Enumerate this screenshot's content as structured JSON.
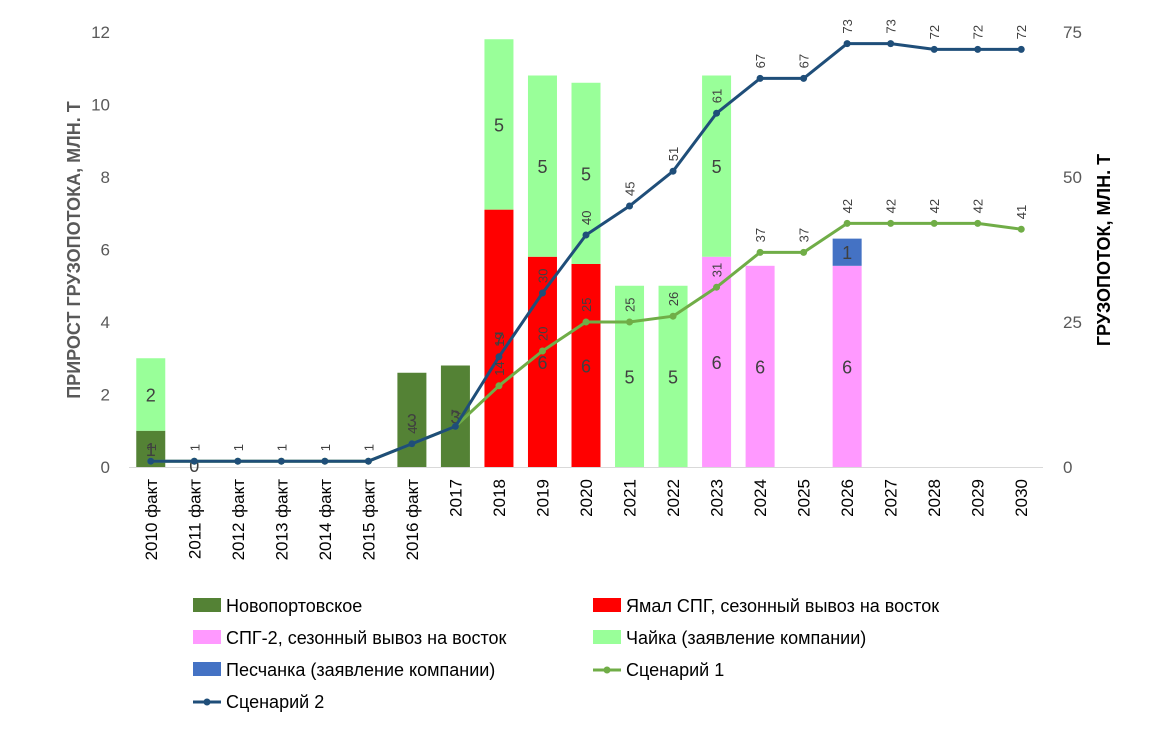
{
  "chart_data": {
    "type": "bar",
    "categories": [
      "2010 факт",
      "2011 факт",
      "2012 факт",
      "2013 факт",
      "2014 факт",
      "2015 факт",
      "2016 факт",
      "2017",
      "2018",
      "2019",
      "2020",
      "2021",
      "2022",
      "2023",
      "2024",
      "2025",
      "2026",
      "2027",
      "2028",
      "2029",
      "2030"
    ],
    "ylabel": "ПРИРОСТ ГРУЗОПОТОКА, МЛН. Т",
    "y2label": "ГРУЗОПОТОК, МЛН. Т",
    "ylim": [
      0,
      12
    ],
    "yticks": [
      0,
      2,
      4,
      6,
      8,
      10,
      12
    ],
    "y2lim": [
      0,
      75
    ],
    "y2ticks": [
      0,
      25,
      50,
      75
    ],
    "series": [
      {
        "name": "Новопортовское",
        "kind": "bar",
        "color": "#548235",
        "values": [
          1,
          0,
          0,
          0,
          0,
          0,
          2.6,
          2.8,
          0,
          0,
          0,
          0,
          0,
          0,
          0,
          0,
          0,
          0,
          0,
          0,
          0
        ],
        "labels": [
          "1",
          "0",
          "",
          "",
          "",
          "",
          "3",
          "3",
          "",
          "",
          "",
          "",
          "",
          "",
          "",
          "",
          "",
          "",
          "",
          "",
          ""
        ]
      },
      {
        "name": "Ямал СПГ, сезонный вывоз на восток",
        "kind": "bar",
        "color": "#ff0000",
        "values": [
          0,
          0,
          0,
          0,
          0,
          0,
          0,
          0,
          7.1,
          5.8,
          5.6,
          0,
          0,
          0,
          0,
          0,
          0,
          0,
          0,
          0,
          0
        ],
        "labels": [
          "",
          "",
          "",
          "",
          "",
          "",
          "",
          "",
          "7",
          "6",
          "6",
          "",
          "",
          "",
          "",
          "",
          "",
          "",
          "",
          "",
          ""
        ]
      },
      {
        "name": "СПГ-2, сезонный вывоз на восток",
        "kind": "bar",
        "color": "#ff99ff",
        "values": [
          0,
          0,
          0,
          0,
          0,
          0,
          0,
          0,
          0,
          0,
          0,
          0,
          0,
          5.8,
          5.55,
          0,
          5.55,
          0,
          0,
          0,
          0
        ],
        "labels": [
          "",
          "",
          "",
          "",
          "",
          "",
          "",
          "",
          "",
          "",
          "",
          "",
          "",
          "6",
          "6",
          "",
          "6",
          "",
          "",
          "",
          ""
        ]
      },
      {
        "name": "Чайка (заявление компании)",
        "kind": "bar",
        "color": "#99ff99",
        "values": [
          2,
          0,
          0,
          0,
          0,
          0,
          0,
          0,
          4.7,
          5,
          5,
          5,
          5,
          5,
          0,
          0,
          0,
          0,
          0,
          0,
          0
        ],
        "labels": [
          "2",
          "",
          "",
          "",
          "",
          "",
          "",
          "",
          "5",
          "5",
          "5",
          "5",
          "5",
          "5",
          "",
          "",
          "",
          "",
          "",
          "",
          ""
        ]
      },
      {
        "name": "Песчанка (заявление компании)",
        "kind": "bar",
        "color": "#4472c4",
        "values": [
          0,
          0,
          0,
          0,
          0,
          0,
          0,
          0,
          0,
          0,
          0,
          0,
          0,
          0,
          0,
          0,
          0.75,
          0,
          0,
          0,
          0
        ],
        "labels": [
          "",
          "",
          "",
          "",
          "",
          "",
          "",
          "",
          "",
          "",
          "",
          "",
          "",
          "",
          "",
          "",
          "1",
          "",
          "",
          "",
          ""
        ]
      },
      {
        "name": "Сценарий 1",
        "kind": "line",
        "axis": "right",
        "color": "#70ad47",
        "values": [
          1,
          1,
          1,
          1,
          1,
          1,
          4,
          7,
          14,
          20,
          25,
          25,
          26,
          31,
          37,
          37,
          42,
          42,
          42,
          42,
          41
        ],
        "labels": [
          "",
          "",
          "",
          "",
          "",
          "",
          "4",
          "7",
          "14",
          "20",
          "25",
          "25",
          "26",
          "31",
          "37",
          "37",
          "42",
          "42",
          "42",
          "42",
          "41"
        ]
      },
      {
        "name": "Сценарий 2",
        "kind": "line",
        "axis": "right",
        "color": "#1f4e79",
        "values": [
          1,
          1,
          1,
          1,
          1,
          1,
          4,
          7,
          19,
          30,
          40,
          45,
          51,
          61,
          67,
          67,
          73,
          73,
          72,
          72,
          72
        ],
        "labels": [
          "1",
          "1",
          "1",
          "1",
          "1",
          "1",
          "",
          "",
          "19",
          "30",
          "40",
          "45",
          "51",
          "61",
          "67",
          "67",
          "73",
          "73",
          "72",
          "72",
          "72"
        ]
      }
    ]
  }
}
